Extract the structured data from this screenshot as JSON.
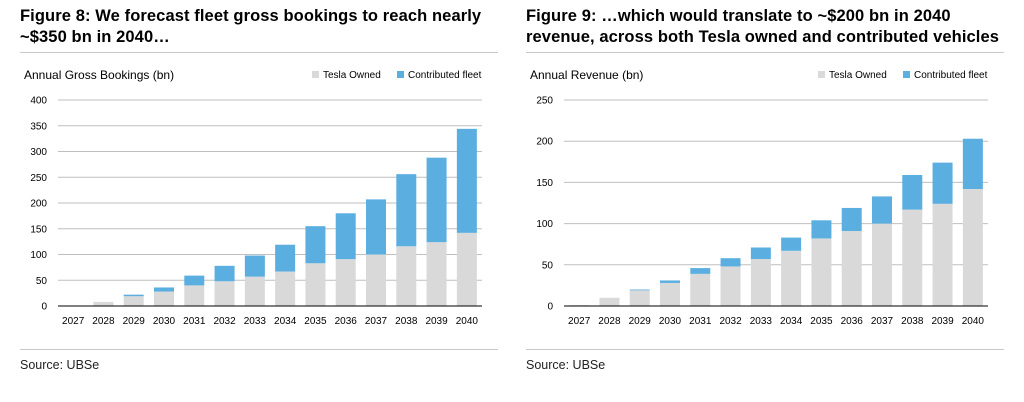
{
  "figures": [
    {
      "title_line1": "Figure 8: We forecast fleet gross bookings to reach nearly",
      "title_line2": "~$350 bn in 2040…",
      "source": "Source: UBSe"
    },
    {
      "title_line1": "Figure 9: …which would translate to ~$200 bn in 2040",
      "title_line2": "revenue, across both Tesla owned and contributed vehicles",
      "source": "Source: UBSe"
    }
  ],
  "colors": {
    "tesla_owned": "#d9d9d9",
    "contributed_fleet": "#5aaee0",
    "gridline": "#bfbfbf",
    "axis": "#000000"
  },
  "chart_data": [
    {
      "type": "bar",
      "stacked": true,
      "title": "Annual Gross Bookings (bn)",
      "categories": [
        "2027",
        "2028",
        "2029",
        "2030",
        "2031",
        "2032",
        "2033",
        "2034",
        "2035",
        "2036",
        "2037",
        "2038",
        "2039",
        "2040"
      ],
      "series": [
        {
          "name": "Tesla Owned",
          "values": [
            1,
            8,
            19,
            28,
            40,
            48,
            57,
            67,
            83,
            91,
            100,
            116,
            124,
            142
          ]
        },
        {
          "name": "Contributed fleet",
          "values": [
            0,
            0,
            3,
            8,
            19,
            30,
            41,
            52,
            72,
            89,
            107,
            140,
            164,
            202
          ]
        }
      ],
      "ylim": [
        0,
        400
      ],
      "yticks": [
        0,
        50,
        100,
        150,
        200,
        250,
        300,
        350,
        400
      ],
      "grid": true,
      "legend": "top-right"
    },
    {
      "type": "bar",
      "stacked": true,
      "title": "Annual Revenue (bn)",
      "categories": [
        "2027",
        "2028",
        "2029",
        "2030",
        "2031",
        "2032",
        "2033",
        "2034",
        "2035",
        "2036",
        "2037",
        "2038",
        "2039",
        "2040"
      ],
      "series": [
        {
          "name": "Tesla Owned",
          "values": [
            1,
            10,
            19,
            28,
            39,
            48,
            57,
            67,
            82,
            91,
            100,
            117,
            124,
            142
          ]
        },
        {
          "name": "Contributed fleet",
          "values": [
            0,
            0,
            1,
            3,
            7,
            10,
            14,
            16,
            22,
            28,
            33,
            42,
            50,
            61
          ]
        }
      ],
      "ylim": [
        0,
        250
      ],
      "yticks": [
        0,
        50,
        100,
        150,
        200,
        250
      ],
      "grid": true,
      "legend": "top-right"
    }
  ]
}
